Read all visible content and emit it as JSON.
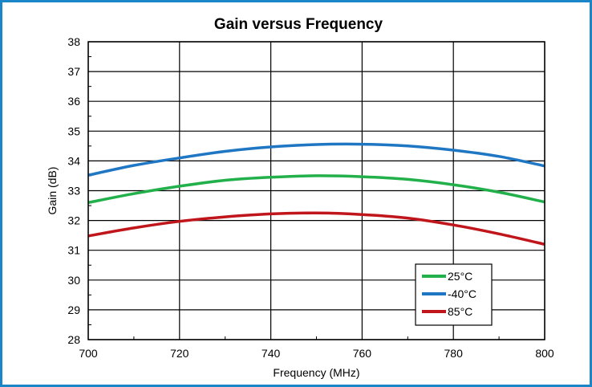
{
  "chart_data": {
    "type": "line",
    "title": "Gain versus Frequency",
    "xlabel": "Frequency (MHz)",
    "ylabel": "Gain (dB)",
    "xlim": [
      700,
      800
    ],
    "ylim": [
      28,
      38
    ],
    "xticks": [
      700,
      720,
      740,
      760,
      780,
      800
    ],
    "yticks": [
      28,
      29,
      30,
      31,
      32,
      33,
      34,
      35,
      36,
      37,
      38
    ],
    "grid": true,
    "legend_position": "bottom-right",
    "x": [
      700,
      710,
      720,
      730,
      740,
      750,
      760,
      770,
      780,
      790,
      800
    ],
    "series": [
      {
        "name": "25°C",
        "color": "#22b04b",
        "values": [
          32.6,
          32.9,
          33.15,
          33.35,
          33.45,
          33.5,
          33.47,
          33.38,
          33.2,
          32.95,
          32.62
        ]
      },
      {
        "name": "-40°C",
        "color": "#1f77c4",
        "values": [
          33.52,
          33.85,
          34.1,
          34.32,
          34.47,
          34.55,
          34.56,
          34.5,
          34.36,
          34.15,
          33.83
        ]
      },
      {
        "name": "85°C",
        "color": "#c0161b",
        "values": [
          31.48,
          31.75,
          31.97,
          32.12,
          32.22,
          32.25,
          32.2,
          32.08,
          31.85,
          31.55,
          31.2
        ]
      }
    ]
  }
}
